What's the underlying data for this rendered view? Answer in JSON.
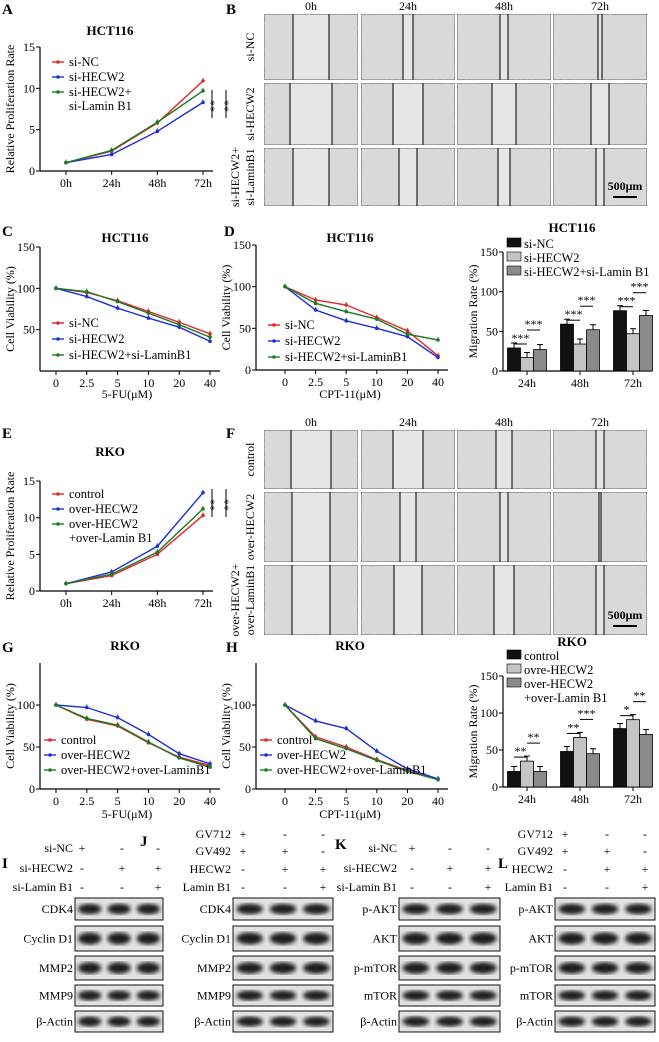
{
  "colors": {
    "red": "#e3262c",
    "blue": "#1f2fd6",
    "green": "#1d7a24",
    "bar_black": "#111111",
    "bar_light": "#c4c4c4",
    "bar_mid": "#8a8a8a"
  },
  "panel_labels": [
    "A",
    "B",
    "C",
    "D",
    "E",
    "F",
    "G",
    "H",
    "I",
    "J",
    "K",
    "L"
  ],
  "wound_B": {
    "columns": [
      "0h",
      "24h",
      "48h",
      "72h"
    ],
    "rows": [
      [
        "si-NC"
      ],
      [
        "si-HECW2"
      ],
      [
        "si-HECW2+",
        "si-LaminB1"
      ]
    ],
    "scale_bar": "500μm"
  },
  "wound_F": {
    "columns": [
      "0h",
      "24h",
      "48h",
      "72h"
    ],
    "rows": [
      [
        "control"
      ],
      [
        "over-HECW2"
      ],
      [
        "over-HECW2+",
        "over-LaminB1"
      ]
    ],
    "scale_bar": "500μm"
  },
  "chart_data": [
    {
      "id": "A",
      "type": "line",
      "title": "HCT116",
      "ylabel": "Relative Proliferation Rate",
      "xlabel": "",
      "categories": [
        "0h",
        "24h",
        "48h",
        "72h"
      ],
      "ylim": [
        0,
        15
      ],
      "yticks": [
        "0",
        "5",
        "10",
        "15"
      ],
      "legend": "top-left",
      "series": [
        {
          "name": "si-NC",
          "label_lines": [
            "si-NC"
          ],
          "color": "red",
          "values": [
            1,
            2.4,
            5.8,
            10.9
          ]
        },
        {
          "name": "si-HECW2",
          "label_lines": [
            "si-HECW2"
          ],
          "color": "blue",
          "values": [
            1,
            2.0,
            4.8,
            8.3
          ]
        },
        {
          "name": "si-HECW2+si-Lamin B1",
          "label_lines": [
            "si-HECW2+",
            "si-Lamin B1"
          ],
          "color": "green",
          "values": [
            1,
            2.5,
            5.9,
            9.7
          ]
        }
      ],
      "annotations": [
        "**",
        "**"
      ]
    },
    {
      "id": "C",
      "type": "line",
      "title": "HCT116",
      "ylabel": "Cell Viability (%)",
      "xlabel": "5-FU(μM)",
      "categories": [
        "0",
        "2.5",
        "5",
        "10",
        "20",
        "40"
      ],
      "ylim": [
        0,
        150
      ],
      "yticks": [
        "50",
        "100",
        "150"
      ],
      "legend": "bottom-left",
      "series": [
        {
          "name": "si-NC",
          "label_lines": [
            "si-NC"
          ],
          "color": "red",
          "values": [
            100,
            95,
            85,
            72,
            59,
            45
          ]
        },
        {
          "name": "si-HECW2",
          "label_lines": [
            "si-HECW2"
          ],
          "color": "blue",
          "values": [
            100,
            90,
            76,
            64,
            53,
            36
          ]
        },
        {
          "name": "si-HECW2+si-LaminB1",
          "label_lines": [
            "si-HECW2+si-LaminB1"
          ],
          "color": "green",
          "values": [
            100,
            96,
            84,
            70,
            56,
            41
          ]
        }
      ],
      "annotations": []
    },
    {
      "id": "D",
      "type": "line",
      "title": "HCT116",
      "ylabel": "Cell Viability (%)",
      "xlabel": "CPT-11(μM)",
      "categories": [
        "0",
        "2.5",
        "5",
        "10",
        "20",
        "40"
      ],
      "ylim": [
        0,
        150
      ],
      "yticks": [
        "0",
        "50",
        "100",
        "150"
      ],
      "legend": "bottom-left",
      "series": [
        {
          "name": "si-NC",
          "label_lines": [
            "si-NC"
          ],
          "color": "red",
          "values": [
            100,
            84,
            78,
            63,
            47,
            17
          ]
        },
        {
          "name": "si-HECW2",
          "label_lines": [
            "si-HECW2"
          ],
          "color": "blue",
          "values": [
            100,
            72,
            59,
            50,
            40,
            15
          ]
        },
        {
          "name": "si-HECW2+si-LaminB1",
          "label_lines": [
            "si-HECW2+si-LaminB1"
          ],
          "color": "green",
          "values": [
            100,
            80,
            70,
            61,
            43,
            36
          ]
        }
      ],
      "annotations": []
    },
    {
      "id": "HCT116-migration",
      "type": "bar",
      "title": "HCT116",
      "ylabel": "Migration Rate (%)",
      "xlabel": "",
      "categories": [
        "24h",
        "48h",
        "72h"
      ],
      "ylim": [
        0,
        150
      ],
      "yticks": [
        "0",
        "50",
        "100",
        "150"
      ],
      "legend": "top",
      "series": [
        {
          "name": "si-NC",
          "label_lines": [
            "si-NC"
          ],
          "color": "bar_black",
          "values": [
            29,
            59,
            76
          ]
        },
        {
          "name": "si-HECW2",
          "label_lines": [
            "si-HECW2"
          ],
          "color": "bar_light",
          "values": [
            17,
            34,
            47
          ]
        },
        {
          "name": "si-HECW2+si-Lamin B1",
          "label_lines": [
            "si-HECW2+si-Lamin B1"
          ],
          "color": "bar_mid",
          "values": [
            27,
            52,
            70
          ]
        }
      ],
      "annotations": [
        [
          "***",
          "***"
        ],
        [
          "***",
          "***"
        ],
        [
          "***",
          "***"
        ]
      ]
    },
    {
      "id": "E",
      "type": "line",
      "title": "RKO",
      "ylabel": "Relative Proliferation Rate",
      "xlabel": "",
      "categories": [
        "0h",
        "24h",
        "48h",
        "72h"
      ],
      "ylim": [
        0,
        15
      ],
      "yticks": [
        "0",
        "5",
        "10",
        "15"
      ],
      "legend": "top-left",
      "series": [
        {
          "name": "control",
          "label_lines": [
            "control"
          ],
          "color": "red",
          "values": [
            1,
            2.1,
            5.0,
            10.3
          ]
        },
        {
          "name": "over-HECW2",
          "label_lines": [
            "over-HECW2"
          ],
          "color": "blue",
          "values": [
            1,
            2.6,
            6.1,
            13.4
          ]
        },
        {
          "name": "over-HECW2+over-Lamin B1",
          "label_lines": [
            "over-HECW2",
            "+over-Lamin B1"
          ],
          "color": "green",
          "values": [
            1,
            2.3,
            5.3,
            11.2
          ]
        }
      ],
      "annotations": [
        "**",
        "**"
      ]
    },
    {
      "id": "G",
      "type": "line",
      "title": "RKO",
      "ylabel": "Cell Viability (%)",
      "xlabel": "5-FU(μM)",
      "categories": [
        "0",
        "2.5",
        "5",
        "10",
        "20",
        "40"
      ],
      "ylim": [
        0,
        150
      ],
      "yticks": [
        "0",
        "50",
        "100"
      ],
      "legend": "bottom-left",
      "series": [
        {
          "name": "control",
          "label_lines": [
            "control"
          ],
          "color": "red",
          "values": [
            100,
            83,
            75,
            55,
            38,
            28
          ]
        },
        {
          "name": "over-HECW2",
          "label_lines": [
            "over-HECW2"
          ],
          "color": "blue",
          "values": [
            100,
            97,
            85,
            65,
            42,
            30
          ]
        },
        {
          "name": "over-HECW2+over-LaminB1",
          "label_lines": [
            "over-HECW2+over-LaminB1"
          ],
          "color": "green",
          "values": [
            100,
            84,
            76,
            56,
            37,
            26
          ]
        }
      ],
      "annotations": []
    },
    {
      "id": "H",
      "type": "line",
      "title": "RKO",
      "ylabel": "Cell Viability (%)",
      "xlabel": "CPT-11(μM)",
      "categories": [
        "0",
        "2.5",
        "5",
        "10",
        "20",
        "40"
      ],
      "ylim": [
        0,
        150
      ],
      "yticks": [
        "0",
        "50",
        "100"
      ],
      "legend": "bottom-left",
      "series": [
        {
          "name": "control",
          "label_lines": [
            "control"
          ],
          "color": "red",
          "values": [
            100,
            62,
            50,
            35,
            22,
            12
          ]
        },
        {
          "name": "over-HECW2",
          "label_lines": [
            "over-HECW2"
          ],
          "color": "blue",
          "values": [
            100,
            81,
            72,
            45,
            24,
            12
          ]
        },
        {
          "name": "over-HECW2+over-LaminB1",
          "label_lines": [
            "over-HECW2+over-LaminB1"
          ],
          "color": "green",
          "values": [
            100,
            60,
            48,
            34,
            21,
            11
          ]
        }
      ],
      "annotations": []
    },
    {
      "id": "RKO-migration",
      "type": "bar",
      "title": "RKO",
      "ylabel": "Migration Rate (%)",
      "xlabel": "",
      "categories": [
        "24h",
        "48h",
        "72h"
      ],
      "ylim": [
        0,
        150
      ],
      "yticks": [
        "0",
        "50",
        "100",
        "150"
      ],
      "legend": "top",
      "series": [
        {
          "name": "control",
          "label_lines": [
            "control"
          ],
          "color": "bar_black",
          "values": [
            21,
            48,
            79
          ]
        },
        {
          "name": "ovre-HECW2",
          "label_lines": [
            "ovre-HECW2"
          ],
          "color": "bar_light",
          "values": [
            35,
            67,
            91
          ]
        },
        {
          "name": "over-HECW2+over-Lamin B1",
          "label_lines": [
            "over-HECW2",
            "+over-Lamin B1"
          ],
          "color": "bar_mid",
          "values": [
            21,
            45,
            71
          ]
        }
      ],
      "annotations": [
        [
          "**",
          "**"
        ],
        [
          "**",
          "***"
        ],
        [
          "*",
          "**"
        ]
      ]
    }
  ],
  "westerns": [
    {
      "treatments": [
        {
          "label": "si-NC",
          "signs": [
            "+",
            "-",
            "-"
          ]
        },
        {
          "label": "si-HECW2",
          "signs": [
            "-",
            "+",
            "+"
          ]
        },
        {
          "label": "si-Lamin B1",
          "signs": [
            "-",
            "-",
            "+"
          ]
        }
      ],
      "bands": [
        "CDK4",
        "Cyclin D1",
        "MMP2",
        "MMP9",
        "β-Actin"
      ]
    },
    {
      "treatments": [
        {
          "label": "GV712",
          "signs": [
            "+",
            "-",
            "-"
          ]
        },
        {
          "label": "GV492",
          "signs": [
            "+",
            "+",
            "-"
          ]
        },
        {
          "label": "HECW2",
          "signs": [
            "-",
            "+",
            "+"
          ]
        },
        {
          "label": "Lamin B1",
          "signs": [
            "-",
            "-",
            "+"
          ]
        }
      ],
      "bands": [
        "CDK4",
        "Cyclin D1",
        "MMP2",
        "MMP9",
        "β-Actin"
      ]
    },
    {
      "treatments": [
        {
          "label": "si-NC",
          "signs": [
            "+",
            "-",
            "-"
          ]
        },
        {
          "label": "si-HECW2",
          "signs": [
            "-",
            "+",
            "+"
          ]
        },
        {
          "label": "si-Lamin B1",
          "signs": [
            "-",
            "-",
            "+"
          ]
        }
      ],
      "bands": [
        "p-AKT",
        "AKT",
        "p-mTOR",
        "mTOR",
        "β-Actin"
      ]
    },
    {
      "treatments": [
        {
          "label": "GV712",
          "signs": [
            "+",
            "-",
            "-"
          ]
        },
        {
          "label": "GV492",
          "signs": [
            "+",
            "+",
            "-"
          ]
        },
        {
          "label": "HECW2",
          "signs": [
            "-",
            "+",
            "+"
          ]
        },
        {
          "label": "Lamin B1",
          "signs": [
            "-",
            "-",
            "+"
          ]
        }
      ],
      "bands": [
        "p-AKT",
        "AKT",
        "p-mTOR",
        "mTOR",
        "β-Actin"
      ]
    }
  ]
}
